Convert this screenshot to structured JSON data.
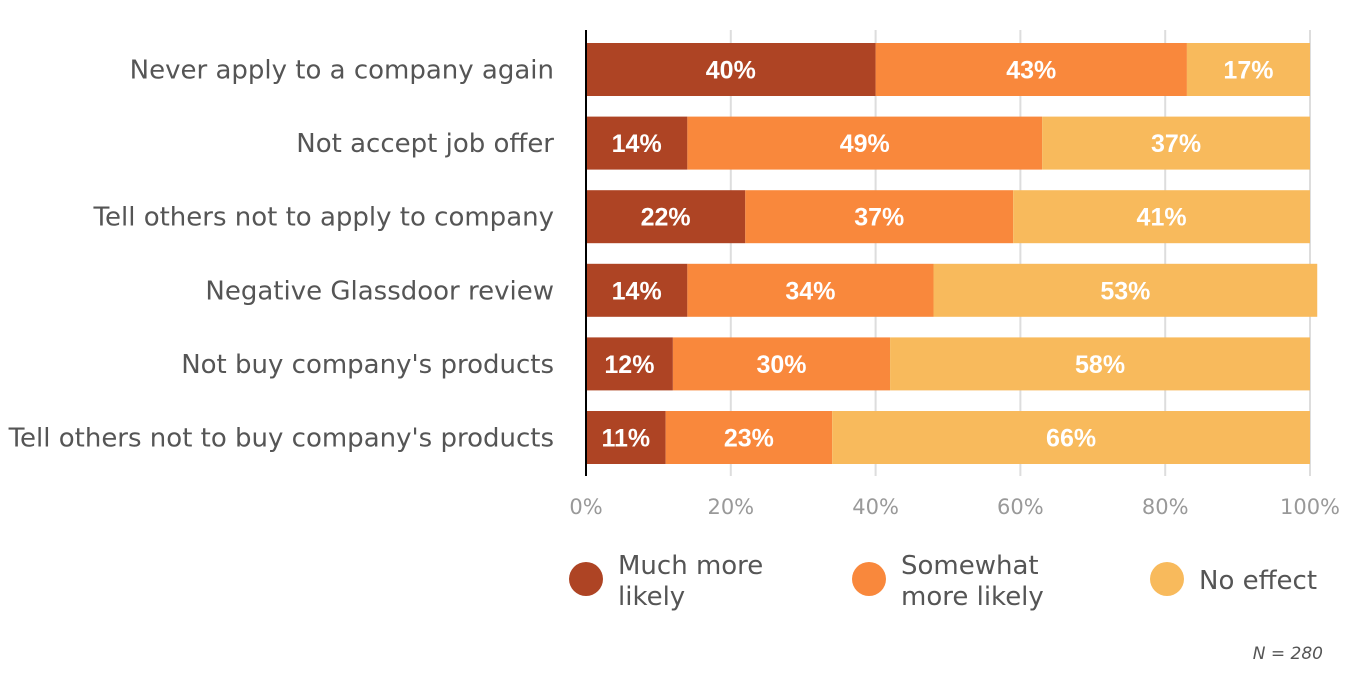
{
  "chart_data": {
    "type": "bar",
    "orientation": "horizontal",
    "stacked": true,
    "title": "",
    "xlabel": "",
    "ylabel": "",
    "xlim": [
      0,
      100
    ],
    "xticks": [
      "0%",
      "20%",
      "40%",
      "60%",
      "80%",
      "100%"
    ],
    "grid": true,
    "legend_position": "bottom",
    "categories": [
      "Never apply to a company again",
      "Not accept job offer",
      "Tell others not to apply to company",
      "Negative Glassdoor review",
      "Not buy company's products",
      "Tell others not to buy company's products"
    ],
    "series": [
      {
        "name": "Much more likely",
        "legend_lines": [
          "Much more",
          "likely"
        ],
        "color": "#AE4424",
        "values": [
          40,
          14,
          22,
          14,
          12,
          11
        ]
      },
      {
        "name": "Somewhat more likely",
        "legend_lines": [
          "Somewhat",
          "more likely"
        ],
        "color": "#F9883C",
        "values": [
          43,
          49,
          37,
          34,
          30,
          23
        ]
      },
      {
        "name": "No effect",
        "legend_lines": [
          "No effect"
        ],
        "color": "#F8BA5C",
        "values": [
          17,
          37,
          41,
          53,
          58,
          66
        ]
      }
    ],
    "note": "N = 280"
  }
}
